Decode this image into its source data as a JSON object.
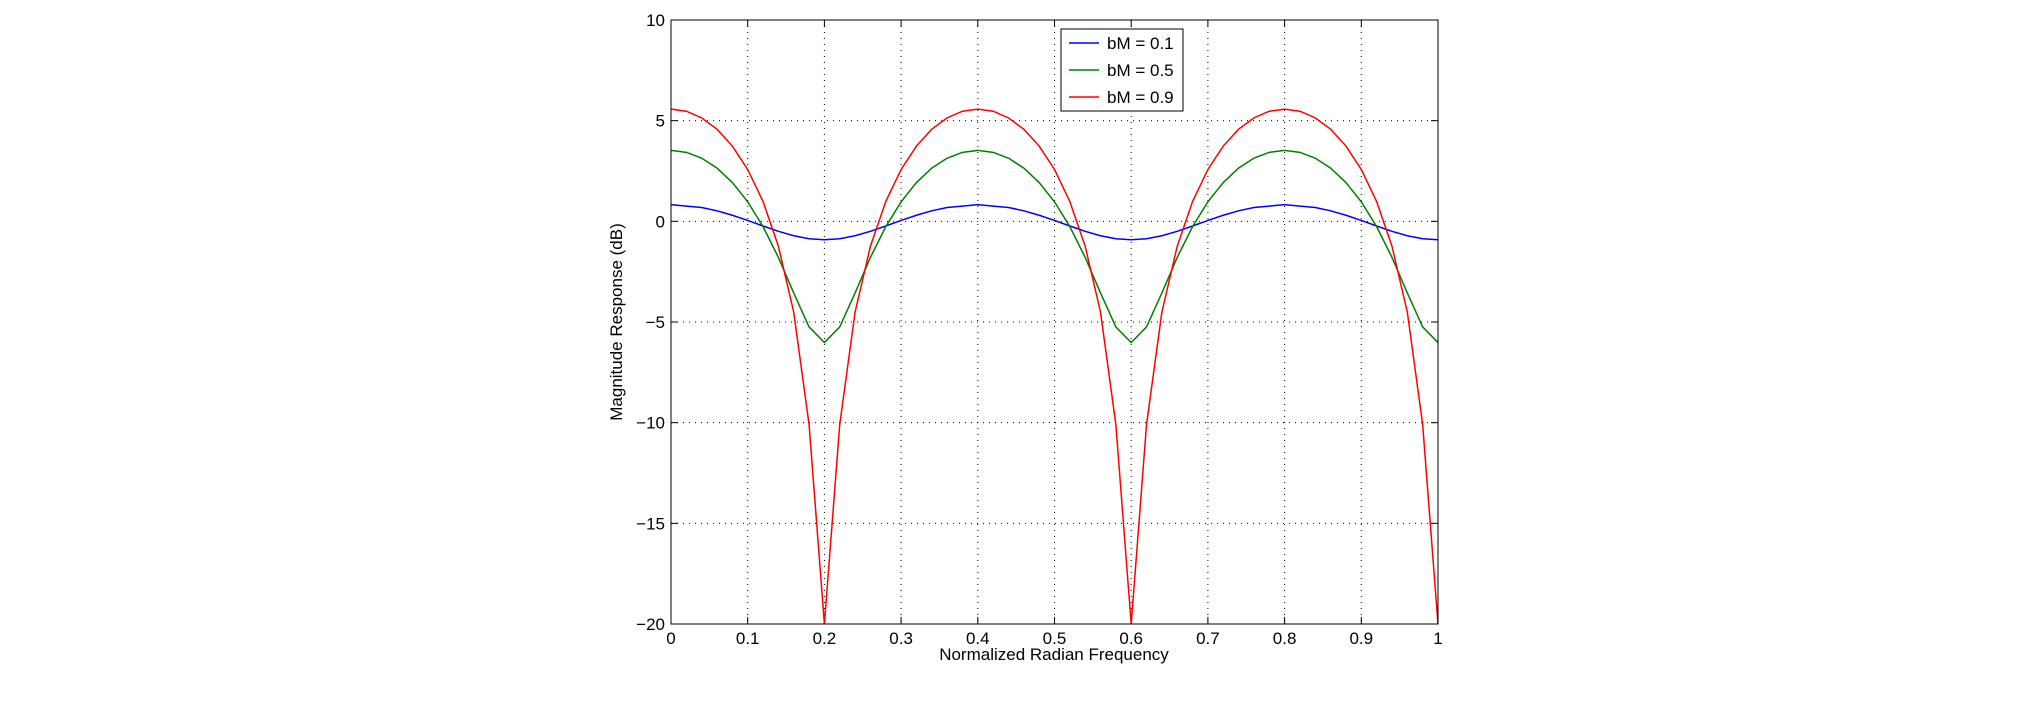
{
  "chart_data": {
    "type": "line",
    "xlabel": "Normalized Radian Frequency",
    "ylabel": "Magnitude Response (dB)",
    "x": [
      0,
      0.02,
      0.04,
      0.06,
      0.08,
      0.1,
      0.12,
      0.14,
      0.16,
      0.18,
      0.2,
      0.22,
      0.24,
      0.26,
      0.28,
      0.3,
      0.32,
      0.34,
      0.36,
      0.38,
      0.4,
      0.42,
      0.44,
      0.46,
      0.48,
      0.5,
      0.52,
      0.54,
      0.56,
      0.58,
      0.6,
      0.62,
      0.64,
      0.66,
      0.68,
      0.7,
      0.72,
      0.74,
      0.76,
      0.78,
      0.8,
      0.82,
      0.84,
      0.86,
      0.88,
      0.9,
      0.92,
      0.94,
      0.96,
      0.98,
      1
    ],
    "series": [
      {
        "name": "bM = 0.1",
        "color": "#0000ff",
        "values": [
          0.828,
          0.756,
          0.689,
          0.522,
          0.301,
          0.043,
          -0.231,
          -0.495,
          -0.715,
          -0.863,
          -0.915,
          -0.863,
          -0.715,
          -0.495,
          -0.231,
          0.043,
          0.301,
          0.522,
          0.689,
          0.756,
          0.828,
          0.756,
          0.689,
          0.522,
          0.301,
          0.043,
          -0.231,
          -0.495,
          -0.715,
          -0.863,
          -0.915,
          -0.863,
          -0.715,
          -0.495,
          -0.231,
          0.043,
          0.301,
          0.522,
          0.689,
          0.756,
          0.828,
          0.756,
          0.689,
          0.522,
          0.301,
          0.043,
          -0.231,
          -0.495,
          -0.715,
          -0.863,
          -0.915
        ]
      },
      {
        "name": "bM = 0.5",
        "color": "#008000",
        "values": [
          3.522,
          3.426,
          3.137,
          2.643,
          1.928,
          0.969,
          -0.264,
          -1.791,
          -3.556,
          -5.243,
          -6.021,
          -5.243,
          -3.556,
          -1.791,
          -0.264,
          0.969,
          1.928,
          2.643,
          3.137,
          3.426,
          3.522,
          3.426,
          3.137,
          2.643,
          1.928,
          0.969,
          -0.264,
          -1.791,
          -3.556,
          -5.243,
          -6.021,
          -5.243,
          -3.556,
          -1.791,
          -0.264,
          0.969,
          1.928,
          2.643,
          3.137,
          3.426,
          3.522,
          3.426,
          3.137,
          2.643,
          1.928,
          0.969,
          -0.264,
          -1.791,
          -3.556,
          -5.243,
          -6.021
        ]
      },
      {
        "name": "bM = 0.9",
        "color": "#ff0000",
        "values": [
          5.575,
          5.468,
          5.14,
          4.576,
          3.74,
          2.577,
          0.983,
          -1.238,
          -4.51,
          -10.09,
          -20,
          -10.09,
          -4.51,
          -1.238,
          0.983,
          2.577,
          3.74,
          4.576,
          5.14,
          5.468,
          5.575,
          5.468,
          5.14,
          4.576,
          3.74,
          2.577,
          0.983,
          -1.238,
          -4.51,
          -10.09,
          -20,
          -10.09,
          -4.51,
          -1.238,
          0.983,
          2.577,
          3.74,
          4.576,
          5.14,
          5.468,
          5.575,
          5.468,
          5.14,
          4.576,
          3.74,
          2.577,
          0.983,
          -1.238,
          -4.51,
          -10.09,
          -20
        ]
      }
    ],
    "xlim": [
      0,
      1
    ],
    "xticks": [
      0,
      0.1,
      0.2,
      0.3,
      0.4,
      0.5,
      0.6,
      0.7,
      0.8,
      0.9,
      1
    ],
    "ylim": [
      -20,
      10
    ],
    "yticks": [
      {
        "value": -20,
        "label": "−20"
      },
      {
        "value": -15,
        "label": "−15"
      },
      {
        "value": -10,
        "label": "−10"
      },
      {
        "value": -5,
        "label": "−5"
      },
      0,
      5,
      10
    ],
    "grid": true,
    "legend": "top"
  }
}
